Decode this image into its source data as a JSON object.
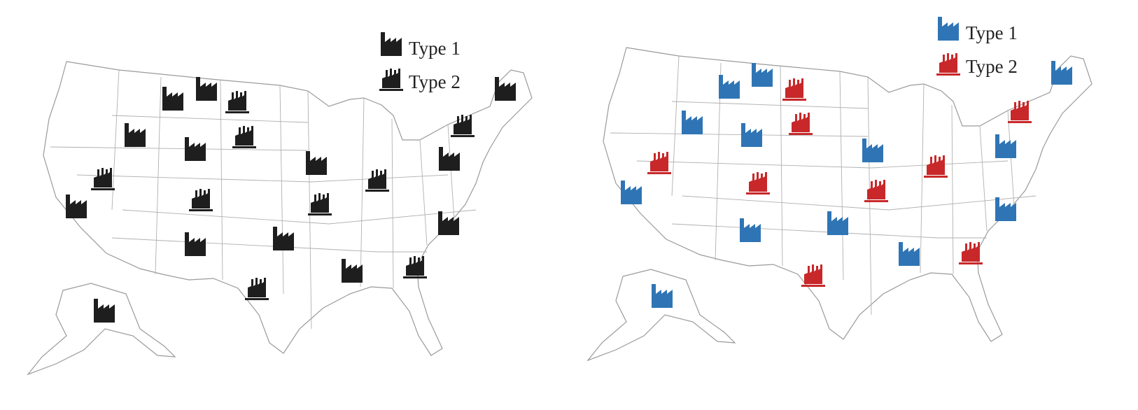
{
  "maps": [
    {
      "legend": [
        {
          "label": "Type 1"
        },
        {
          "label": "Type 2"
        }
      ]
    },
    {
      "legend": [
        {
          "label": "Type 1"
        },
        {
          "label": "Type 2"
        }
      ]
    }
  ]
}
